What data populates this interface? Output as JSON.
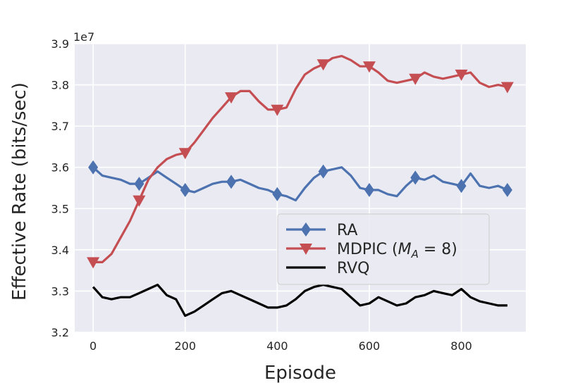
{
  "chart_data": {
    "type": "line",
    "title": "",
    "xlabel": "Episode",
    "ylabel": "Effective Rate (bits/sec)",
    "y_scale_label": "1e7",
    "xlim": [
      -40,
      940
    ],
    "ylim": [
      3.2,
      3.9
    ],
    "x_ticks": [
      0,
      200,
      400,
      600,
      800
    ],
    "x_tick_labels": [
      "0",
      "200",
      "400",
      "600",
      "800"
    ],
    "y_ticks": [
      3.2,
      3.3,
      3.4,
      3.5,
      3.6,
      3.7,
      3.8,
      3.9
    ],
    "y_tick_labels": [
      "3.2",
      "3.3",
      "3.4",
      "3.5",
      "3.6",
      "3.7",
      "3.8",
      "3.9"
    ],
    "grid": true,
    "legend_position": "center-right",
    "series": [
      {
        "name": "RA",
        "color": "#4c72b0",
        "marker": "diamond",
        "markers_x": [
          0,
          100,
          200,
          300,
          400,
          500,
          600,
          700,
          800,
          900
        ],
        "x": [
          0,
          20,
          40,
          60,
          80,
          100,
          120,
          140,
          160,
          180,
          200,
          220,
          240,
          260,
          280,
          300,
          320,
          340,
          360,
          380,
          400,
          420,
          440,
          460,
          480,
          500,
          520,
          540,
          560,
          580,
          600,
          620,
          640,
          660,
          680,
          700,
          720,
          740,
          760,
          780,
          800,
          820,
          840,
          860,
          880,
          900
        ],
        "y": [
          3.6,
          3.58,
          3.575,
          3.57,
          3.56,
          3.56,
          3.575,
          3.59,
          3.575,
          3.56,
          3.545,
          3.54,
          3.55,
          3.56,
          3.565,
          3.565,
          3.57,
          3.56,
          3.55,
          3.545,
          3.535,
          3.53,
          3.52,
          3.55,
          3.575,
          3.59,
          3.595,
          3.6,
          3.58,
          3.55,
          3.545,
          3.545,
          3.535,
          3.53,
          3.555,
          3.575,
          3.57,
          3.58,
          3.565,
          3.56,
          3.555,
          3.585,
          3.555,
          3.55,
          3.555,
          3.545
        ]
      },
      {
        "name": "MDPIC ($M_A = 8$)",
        "color": "#c44e52",
        "marker": "triangle-down",
        "markers_x": [
          0,
          100,
          200,
          300,
          400,
          500,
          600,
          700,
          800,
          900
        ],
        "x": [
          0,
          20,
          40,
          60,
          80,
          100,
          120,
          140,
          160,
          180,
          200,
          220,
          240,
          260,
          280,
          300,
          320,
          340,
          360,
          380,
          400,
          420,
          440,
          460,
          480,
          500,
          520,
          540,
          560,
          580,
          600,
          620,
          640,
          660,
          680,
          700,
          720,
          740,
          760,
          780,
          800,
          820,
          840,
          860,
          880,
          900
        ],
        "y": [
          3.37,
          3.37,
          3.39,
          3.43,
          3.47,
          3.52,
          3.57,
          3.6,
          3.62,
          3.63,
          3.635,
          3.66,
          3.69,
          3.72,
          3.745,
          3.77,
          3.785,
          3.785,
          3.76,
          3.74,
          3.74,
          3.745,
          3.79,
          3.825,
          3.84,
          3.85,
          3.865,
          3.87,
          3.86,
          3.845,
          3.845,
          3.83,
          3.81,
          3.805,
          3.81,
          3.815,
          3.83,
          3.82,
          3.815,
          3.82,
          3.825,
          3.83,
          3.805,
          3.795,
          3.8,
          3.795
        ]
      },
      {
        "name": "RVQ",
        "color": "#000000",
        "marker": "none",
        "markers_x": [],
        "x": [
          0,
          20,
          40,
          60,
          80,
          100,
          120,
          140,
          160,
          180,
          200,
          220,
          240,
          260,
          280,
          300,
          320,
          340,
          360,
          380,
          400,
          420,
          440,
          460,
          480,
          500,
          520,
          540,
          560,
          580,
          600,
          620,
          640,
          660,
          680,
          700,
          720,
          740,
          760,
          780,
          800,
          820,
          840,
          860,
          880,
          900
        ],
        "y": [
          3.31,
          3.285,
          3.28,
          3.285,
          3.285,
          3.295,
          3.305,
          3.315,
          3.29,
          3.28,
          3.24,
          3.25,
          3.265,
          3.28,
          3.295,
          3.3,
          3.29,
          3.28,
          3.27,
          3.26,
          3.26,
          3.265,
          3.28,
          3.3,
          3.31,
          3.315,
          3.31,
          3.305,
          3.285,
          3.265,
          3.27,
          3.285,
          3.275,
          3.265,
          3.27,
          3.285,
          3.29,
          3.3,
          3.295,
          3.29,
          3.305,
          3.285,
          3.275,
          3.27,
          3.265,
          3.265
        ]
      }
    ]
  }
}
